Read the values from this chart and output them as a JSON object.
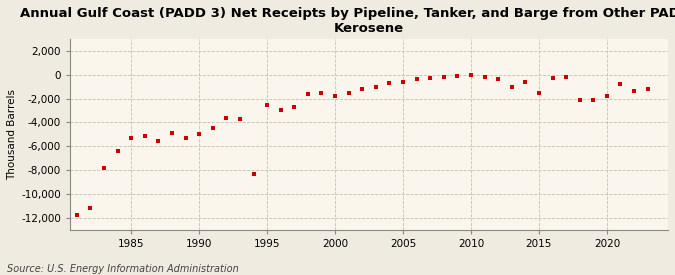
{
  "title": "Annual Gulf Coast (PADD 3) Net Receipts by Pipeline, Tanker, and Barge from Other PADDs of Kerosene",
  "ylabel": "Thousand Barrels",
  "source": "Source: U.S. Energy Information Administration",
  "background_color": "#f0ebe0",
  "plot_background_color": "#faf6ee",
  "marker_color": "#cc0000",
  "ylim": [
    -13000,
    3000
  ],
  "yticks": [
    2000,
    0,
    -2000,
    -4000,
    -6000,
    -8000,
    -10000,
    -12000
  ],
  "xticks": [
    1985,
    1990,
    1995,
    2000,
    2005,
    2010,
    2015,
    2020
  ],
  "xlim": [
    1980.5,
    2024.5
  ],
  "years": [
    1981,
    1982,
    1983,
    1984,
    1985,
    1986,
    1987,
    1988,
    1989,
    1990,
    1991,
    1992,
    1993,
    1994,
    1995,
    1996,
    1997,
    1998,
    1999,
    2000,
    2001,
    2002,
    2003,
    2004,
    2005,
    2006,
    2007,
    2008,
    2009,
    2010,
    2011,
    2012,
    2013,
    2014,
    2015,
    2016,
    2017,
    2018,
    2019,
    2020,
    2021,
    2022,
    2023
  ],
  "values": [
    -11800,
    -11200,
    -7800,
    -6400,
    -5300,
    -5100,
    -5600,
    -4900,
    -5300,
    -5000,
    -4500,
    -3600,
    -3700,
    -8300,
    -2500,
    -3000,
    -2700,
    -1600,
    -1500,
    -1800,
    -1500,
    -1200,
    -1000,
    -700,
    -600,
    -400,
    -300,
    -200,
    -100,
    -50,
    -200,
    -400,
    -1000,
    -600,
    -1500,
    -300,
    -200,
    -2100,
    -2100,
    -1800,
    -800,
    -1400,
    -1200
  ],
  "title_fontsize": 9.5,
  "tick_fontsize": 7.5,
  "ylabel_fontsize": 7.5,
  "source_fontsize": 7.0,
  "grid_color": "#c8bfaf",
  "spine_color": "#888888"
}
